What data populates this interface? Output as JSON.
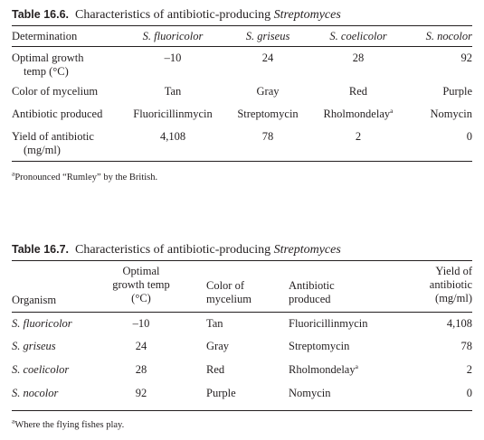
{
  "table1": {
    "number": "Table 16.6.",
    "title_prefix": "Characteristics of antibiotic-producing ",
    "title_italic": "Streptomyces",
    "headers": [
      "Determination",
      "S. fluoricolor",
      "S. griseus",
      "S. coelicolor",
      "S. nocolor"
    ],
    "rows": [
      {
        "label_line1": "Optimal growth",
        "label_line2": "temp (°C)",
        "values": [
          "–10",
          "24",
          "28",
          "92"
        ]
      },
      {
        "label_line1": "Color of mycelium",
        "label_line2": "",
        "values": [
          "Tan",
          "Gray",
          "Red",
          "Purple"
        ]
      },
      {
        "label_line1": "Antibiotic produced",
        "label_line2": "",
        "values": [
          "Fluoricillinmycin",
          "Streptomycin",
          "Rholmondelay",
          "Nomycin"
        ]
      },
      {
        "label_line1": "Yield of antibiotic",
        "label_line2": "(mg/ml)",
        "values": [
          "4,108",
          "78",
          "2",
          "0"
        ]
      }
    ],
    "sup_mark": "a",
    "footnote_mark": "a",
    "footnote_text": "Pronounced “Rumley” by the British."
  },
  "table2": {
    "number": "Table 16.7.",
    "title_prefix": "Characteristics of antibiotic-producing ",
    "title_italic": "Streptomyces",
    "headers": {
      "organism": "Organism",
      "temp": [
        "Optimal",
        "growth temp",
        "(°C)"
      ],
      "color": [
        "Color of",
        "mycelium"
      ],
      "antibiotic": [
        "Antibiotic",
        "produced"
      ],
      "yield": [
        "Yield of",
        "antibiotic",
        "(mg/ml)"
      ]
    },
    "rows": [
      {
        "organism": "S. fluoricolor",
        "temp": "–10",
        "color": "Tan",
        "antibiotic": "Fluoricillinmycin",
        "yield": "4,108"
      },
      {
        "organism": "S. griseus",
        "temp": "24",
        "color": "Gray",
        "antibiotic": "Streptomycin",
        "yield": "78"
      },
      {
        "organism": "S. coelicolor",
        "temp": "28",
        "color": "Red",
        "antibiotic": "Rholmondelay",
        "yield": "2"
      },
      {
        "organism": "S. nocolor",
        "temp": "92",
        "color": "Purple",
        "antibiotic": "Nomycin",
        "yield": "0"
      }
    ],
    "sup_mark": "a",
    "footnote_mark": "a",
    "footnote_text": "Where the flying fishes play."
  }
}
